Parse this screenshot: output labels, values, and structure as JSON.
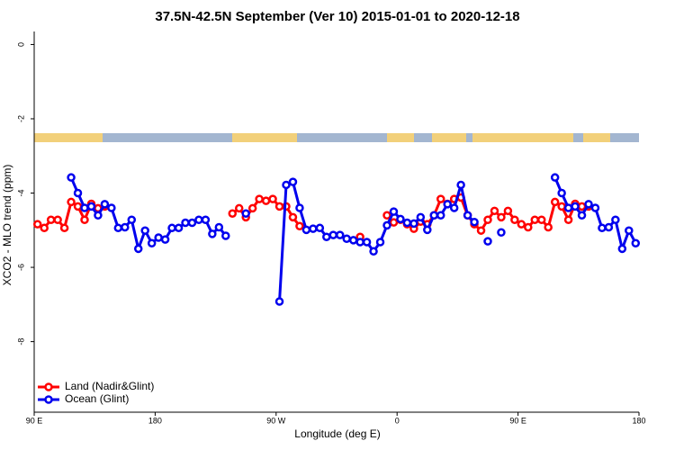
{
  "chart_data": {
    "type": "line",
    "title": "37.5N-42.5N September (Ver 10)   2015-01-01 to 2020-12-18",
    "x_label": "Longitude (deg E)",
    "y_label": "XCO2 - MLO trend (ppm)",
    "x": [
      92.5,
      97.5,
      102.5,
      107.5,
      112.5,
      117.5,
      122.5,
      127.5,
      132.5,
      137.5,
      142.5,
      147.5,
      152.5,
      157.5,
      162.5,
      167.5,
      172.5,
      177.5,
      182.5,
      187.5,
      192.5,
      197.5,
      202.5,
      207.5,
      212.5,
      217.5,
      222.5,
      227.5,
      232.5,
      237.5,
      242.5,
      247.5,
      252.5,
      257.5,
      262.5,
      267.5,
      272.5,
      277.5,
      282.5,
      287.5,
      292.5,
      297.5,
      302.5,
      307.5,
      312.5,
      317.5,
      322.5,
      327.5,
      332.5,
      337.5,
      342.5,
      347.5,
      352.5,
      357.5,
      362.5,
      367.5,
      372.5,
      377.5,
      382.5,
      387.5,
      392.5,
      397.5,
      402.5,
      407.5,
      412.5,
      417.5,
      422.5,
      427.5,
      432.5,
      437.5,
      442.5,
      447.5,
      452.5,
      457.5,
      462.5,
      467.5,
      472.5,
      477.5,
      482.5,
      487.5,
      492.5,
      497.5,
      502.5,
      507.5,
      512.5,
      517.5,
      522.5,
      527.5,
      532.5,
      537.5
    ],
    "series": [
      {
        "name": "Land (Nadir&Glint)",
        "color": "#ff0000",
        "values": [
          -4.84,
          -4.94,
          -4.72,
          -4.72,
          -4.94,
          -4.24,
          -4.36,
          -4.72,
          -4.29,
          -4.41,
          -4.36,
          null,
          null,
          null,
          null,
          null,
          null,
          null,
          null,
          null,
          null,
          null,
          null,
          null,
          null,
          null,
          null,
          null,
          null,
          -4.55,
          -4.41,
          -4.65,
          -4.41,
          -4.16,
          -4.21,
          -4.16,
          -4.36,
          -4.36,
          -4.65,
          -4.89,
          null,
          null,
          null,
          null,
          null,
          null,
          null,
          null,
          -5.18,
          null,
          null,
          null,
          -4.6,
          -4.79,
          -4.72,
          -4.84,
          -4.96,
          -4.77,
          -4.84,
          -4.6,
          -4.16,
          -4.29,
          -4.16,
          -4.12,
          -4.6,
          -4.84,
          -5.01,
          -4.72,
          -4.48,
          -4.65,
          -4.48,
          -4.72,
          -4.84,
          -4.92,
          -4.72,
          -4.72,
          -4.92,
          -4.24,
          -4.36,
          -4.72,
          -4.29,
          -4.36,
          -4.36,
          null,
          null,
          null,
          null,
          null,
          null,
          null
        ]
      },
      {
        "name": "Ocean (Glint)",
        "color": "#0000ee",
        "values": [
          null,
          null,
          null,
          null,
          null,
          -3.58,
          -4.0,
          -4.4,
          -4.36,
          -4.6,
          -4.3,
          -4.4,
          -4.94,
          -4.92,
          -4.72,
          -5.5,
          -5.01,
          -5.35,
          -5.2,
          -5.25,
          -4.94,
          -4.94,
          -4.8,
          -4.8,
          -4.72,
          -4.72,
          -5.1,
          -4.92,
          -5.15,
          null,
          null,
          -4.55,
          null,
          null,
          null,
          null,
          -6.92,
          -3.78,
          -3.7,
          -4.4,
          -4.99,
          -4.96,
          -4.94,
          -5.18,
          -5.13,
          -5.13,
          -5.23,
          -5.27,
          -5.32,
          -5.32,
          -5.57,
          -5.32,
          -4.87,
          -4.5,
          -4.7,
          -4.8,
          -4.82,
          -4.65,
          -4.99,
          -4.6,
          -4.6,
          -4.3,
          -4.4,
          -3.78,
          -4.6,
          -4.78,
          null,
          -5.3,
          null,
          -5.06,
          null,
          null,
          null,
          null,
          null,
          null,
          null,
          -3.58,
          -4.0,
          -4.4,
          -4.36,
          -4.6,
          -4.3,
          -4.4,
          -4.94,
          -4.92,
          -4.72,
          -5.5,
          -5.01,
          -5.35
        ]
      }
    ],
    "xlim": [
      90,
      540
    ],
    "xticks": [
      {
        "value": 90,
        "label": "90 E"
      },
      180,
      {
        "value": 270,
        "label": "90 W"
      },
      {
        "value": 360,
        "label": "0"
      },
      {
        "value": 450,
        "label": "90 E"
      },
      {
        "value": 540,
        "label": "180"
      }
    ],
    "ylim": [
      -9.9,
      0.35
    ],
    "yticks": [
      0,
      -2,
      -4,
      -6,
      -8
    ],
    "legend": "bottom-left"
  }
}
